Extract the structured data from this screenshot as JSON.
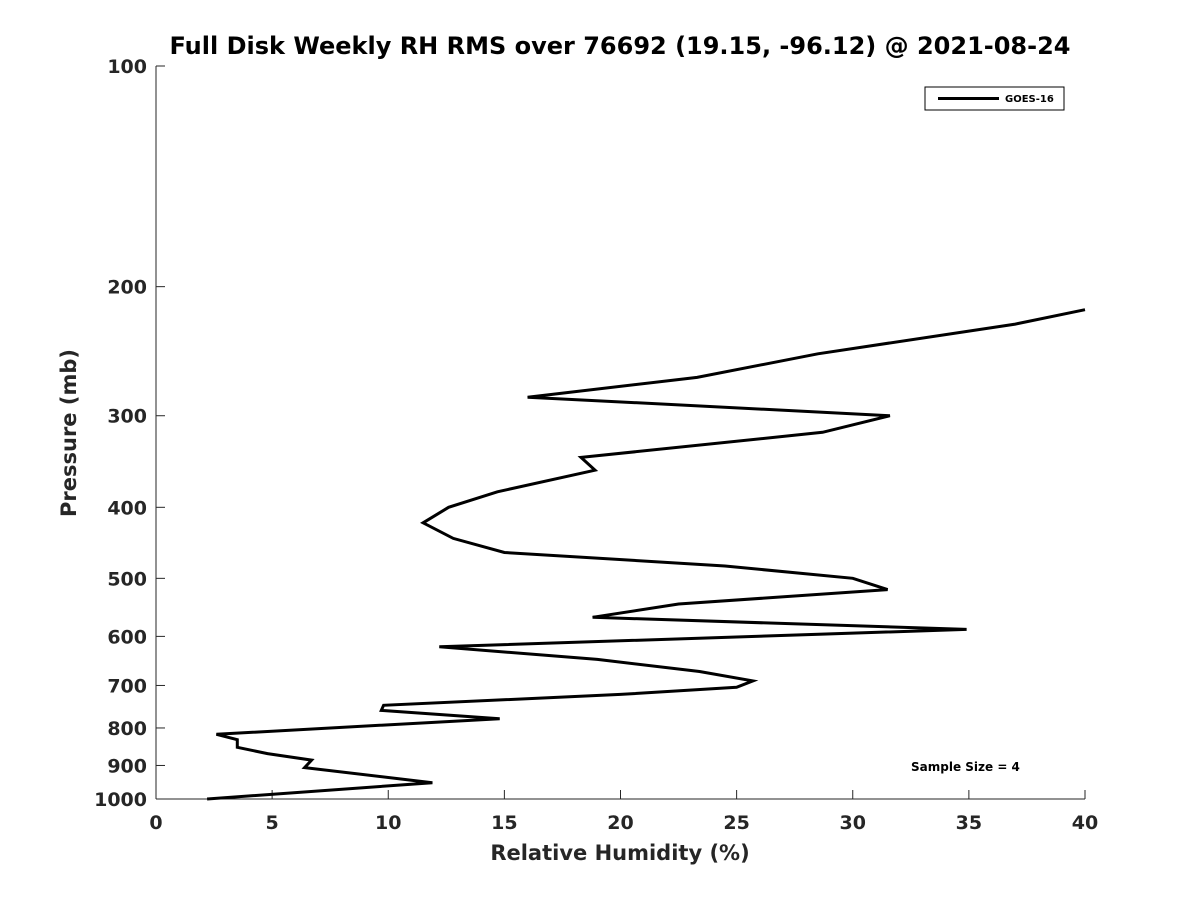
{
  "chart_data": {
    "type": "line",
    "title": "Full Disk Weekly RH RMS over 76692 (19.15, -96.12) @ 2021-08-24",
    "xlabel": "Relative Humidity (%)",
    "ylabel": "Pressure (mb)",
    "xlim": [
      0,
      40
    ],
    "ylim": [
      100,
      1000
    ],
    "y_scale": "log",
    "y_reversed": true,
    "x_ticks": [
      0,
      5,
      10,
      15,
      20,
      25,
      30,
      35,
      40
    ],
    "y_ticks": [
      100,
      200,
      300,
      400,
      500,
      600,
      700,
      800,
      900,
      1000
    ],
    "grid": false,
    "legend_position": "top-right",
    "annotation": "Sample Size = 4",
    "series": [
      {
        "name": "GOES-16",
        "color": "#000000",
        "points": [
          {
            "x": 40.0,
            "y": 215
          },
          {
            "x": 37.0,
            "y": 225
          },
          {
            "x": 28.5,
            "y": 247
          },
          {
            "x": 23.3,
            "y": 266
          },
          {
            "x": 16.0,
            "y": 283
          },
          {
            "x": 31.6,
            "y": 300
          },
          {
            "x": 28.7,
            "y": 316
          },
          {
            "x": 18.3,
            "y": 342
          },
          {
            "x": 18.9,
            "y": 356
          },
          {
            "x": 14.7,
            "y": 381
          },
          {
            "x": 12.6,
            "y": 400
          },
          {
            "x": 11.5,
            "y": 420
          },
          {
            "x": 12.8,
            "y": 441
          },
          {
            "x": 15.0,
            "y": 461
          },
          {
            "x": 24.5,
            "y": 481
          },
          {
            "x": 30.0,
            "y": 500
          },
          {
            "x": 31.5,
            "y": 518
          },
          {
            "x": 22.5,
            "y": 542
          },
          {
            "x": 18.8,
            "y": 565
          },
          {
            "x": 34.9,
            "y": 587
          },
          {
            "x": 12.2,
            "y": 620
          },
          {
            "x": 19.0,
            "y": 645
          },
          {
            "x": 23.4,
            "y": 670
          },
          {
            "x": 25.7,
            "y": 690
          },
          {
            "x": 25.0,
            "y": 704
          },
          {
            "x": 20.0,
            "y": 720
          },
          {
            "x": 9.8,
            "y": 745
          },
          {
            "x": 9.7,
            "y": 757
          },
          {
            "x": 14.8,
            "y": 777
          },
          {
            "x": 2.6,
            "y": 816
          },
          {
            "x": 3.5,
            "y": 830
          },
          {
            "x": 3.5,
            "y": 850
          },
          {
            "x": 4.8,
            "y": 867
          },
          {
            "x": 6.7,
            "y": 885
          },
          {
            "x": 6.4,
            "y": 906
          },
          {
            "x": 11.9,
            "y": 950
          },
          {
            "x": 2.2,
            "y": 1000
          }
        ]
      }
    ]
  }
}
